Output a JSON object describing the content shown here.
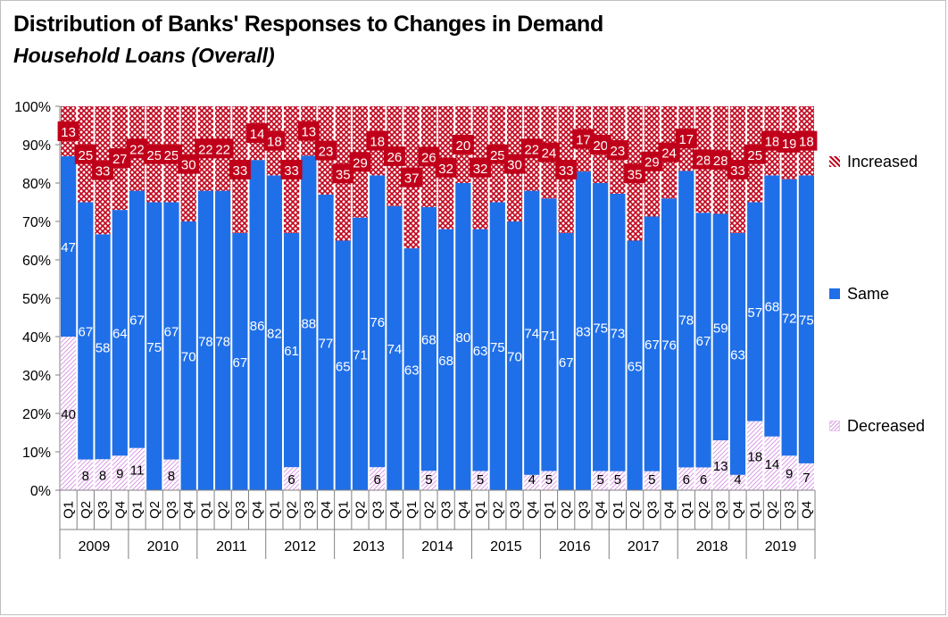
{
  "title": "Distribution of Banks' Responses to Changes in Demand",
  "subtitle": "Household Loans (Overall)",
  "colors": {
    "increased": "#c0001a",
    "same": "#1f6fe8",
    "decreased": "#e8c6ee"
  },
  "legend": [
    "Increased",
    "Same",
    "Decreased"
  ],
  "chart_data": {
    "type": "bar",
    "stacked": true,
    "percent": true,
    "ylim": [
      0,
      100
    ],
    "yticks": [
      "0%",
      "10%",
      "20%",
      "30%",
      "40%",
      "50%",
      "60%",
      "70%",
      "80%",
      "90%",
      "100%"
    ],
    "years": [
      "2009",
      "2010",
      "2011",
      "2012",
      "2013",
      "2014",
      "2015",
      "2016",
      "2017",
      "2018",
      "2019"
    ],
    "quarters": [
      "Q1",
      "Q2",
      "Q3",
      "Q4"
    ],
    "series": [
      {
        "name": "Decreased",
        "values": [
          40,
          8,
          8,
          9,
          11,
          0,
          8,
          0,
          0,
          0,
          0,
          0,
          0,
          6,
          0,
          0,
          0,
          0,
          6,
          0,
          0,
          5,
          0,
          0,
          5,
          0,
          0,
          4,
          5,
          0,
          0,
          5,
          5,
          0,
          5,
          0,
          6,
          6,
          13,
          4,
          18,
          14,
          9,
          7
        ]
      },
      {
        "name": "Same",
        "values": [
          47,
          67,
          58,
          64,
          67,
          75,
          67,
          70,
          78,
          78,
          67,
          86,
          82,
          61,
          88,
          77,
          65,
          71,
          76,
          74,
          63,
          68,
          68,
          80,
          63,
          75,
          70,
          74,
          71,
          67,
          83,
          75,
          73,
          65,
          67,
          76,
          78,
          67,
          59,
          63,
          57,
          68,
          72,
          75
        ]
      },
      {
        "name": "Increased",
        "values": [
          13,
          25,
          33,
          27,
          22,
          25,
          25,
          30,
          22,
          22,
          33,
          14,
          18,
          33,
          13,
          23,
          35,
          29,
          18,
          26,
          37,
          26,
          32,
          20,
          32,
          25,
          30,
          22,
          24,
          33,
          17,
          20,
          23,
          35,
          29,
          24,
          17,
          28,
          28,
          33,
          25,
          18,
          19,
          18
        ]
      }
    ],
    "data_labels": {
      "Decreased": [
        "40",
        "8",
        "8",
        "9",
        "11",
        "",
        "8",
        "",
        "",
        "",
        "",
        "",
        "",
        "6",
        "",
        "",
        "",
        "",
        "6",
        "",
        "",
        "5",
        "",
        "",
        "5",
        "",
        "",
        "4",
        "5",
        "",
        "",
        "5",
        "5",
        "",
        "5",
        "",
        "6",
        "6",
        "13",
        "4",
        "18",
        "14",
        "9",
        "7"
      ],
      "Same": [
        "47",
        "67",
        "58",
        "64",
        "67",
        "75",
        "67",
        "70",
        "78",
        "78",
        "67",
        "86",
        "82",
        "61",
        "88",
        "77",
        "65",
        "71",
        "76",
        "74",
        "63",
        "68",
        "68",
        "80",
        "63",
        "75",
        "70",
        "74",
        "71",
        "67",
        "83",
        "75",
        "73",
        "65",
        "67",
        "76",
        "78",
        "67",
        "59",
        "63",
        "57",
        "68",
        "72",
        "75"
      ],
      "Increased": [
        "13",
        "25",
        "33",
        "27",
        "22",
        "25",
        "25",
        "30",
        "22",
        "22",
        "33",
        "14",
        "18",
        "33",
        "13",
        "23",
        "35",
        "29",
        "18",
        "26",
        "37",
        "26",
        "32",
        "20",
        "32",
        "25",
        "30",
        "22",
        "24",
        "33",
        "17",
        "20",
        "23",
        "35",
        "29",
        "24",
        "17",
        "28",
        "28",
        "33",
        "25",
        "18",
        "19",
        "18"
      ]
    },
    "legend_position": "right",
    "grid": false
  }
}
